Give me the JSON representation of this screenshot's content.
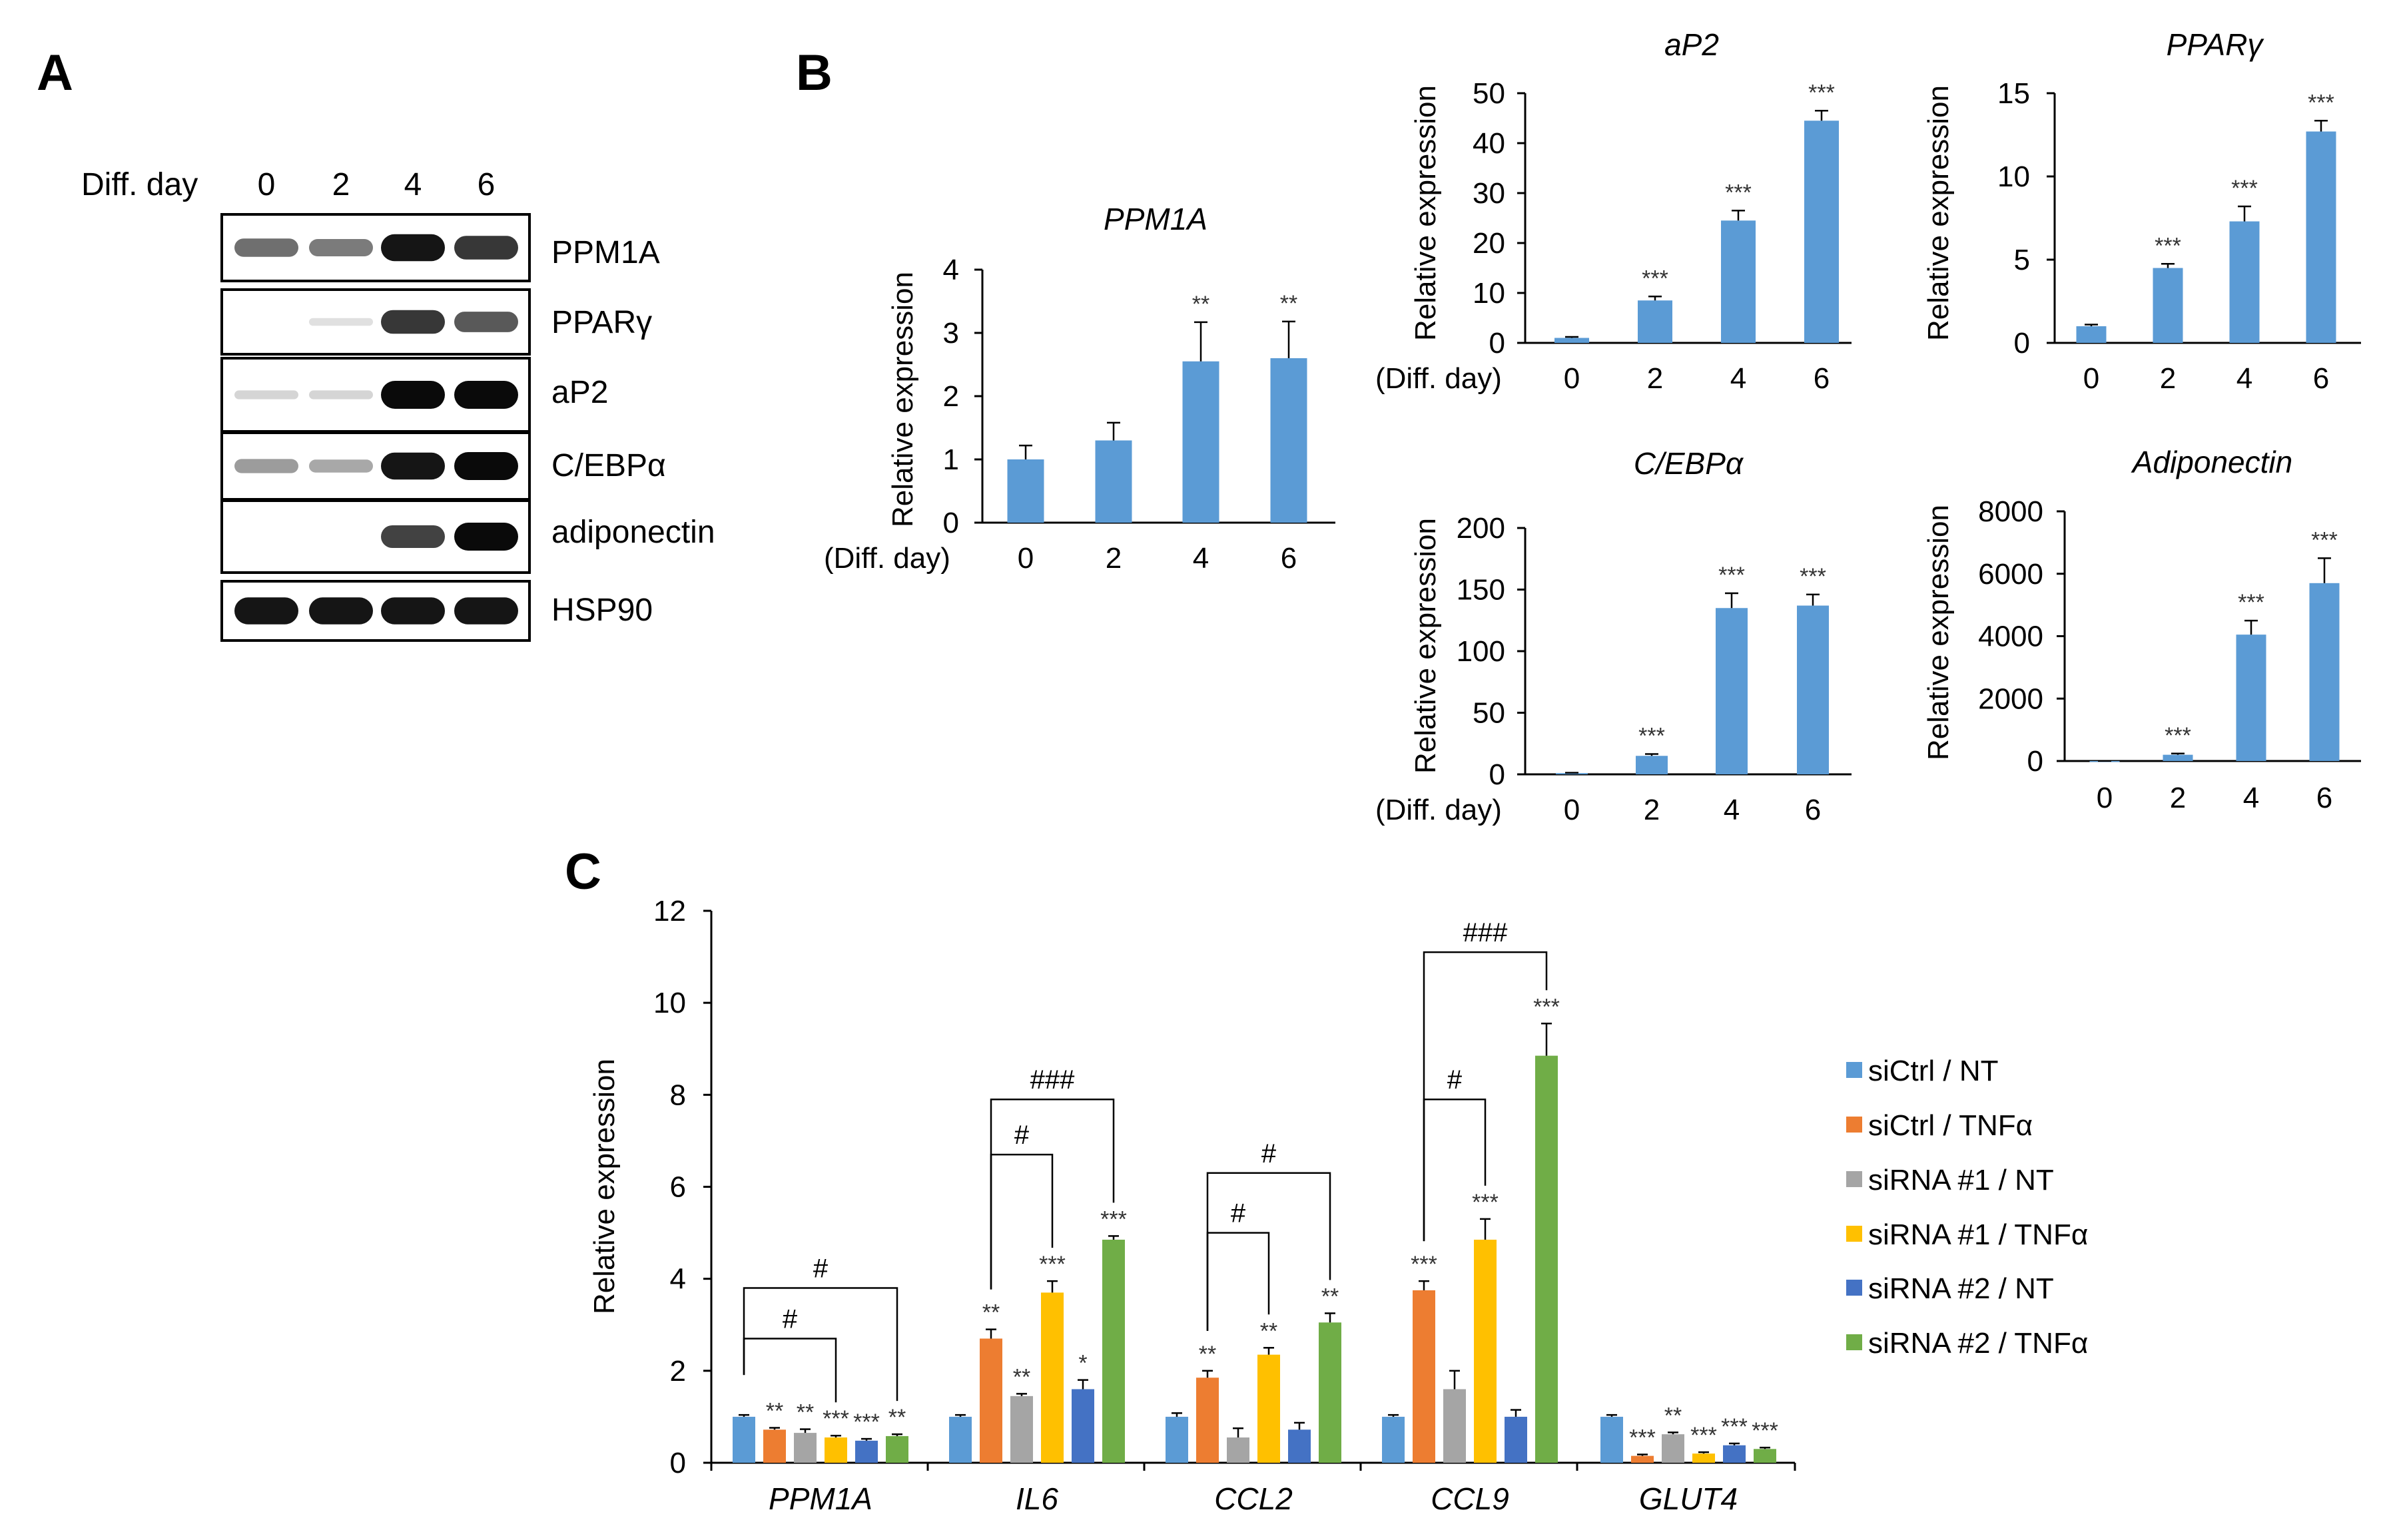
{
  "panels": {
    "A": "A",
    "B": "B",
    "C": "C"
  },
  "colors": {
    "bar_blue": "#5B9BD5",
    "siCtrl_NT": "#5B9BD5",
    "siCtrl_TNF": "#ED7D31",
    "siRNA1_NT": "#A5A5A5",
    "siRNA1_TNF": "#FFC000",
    "siRNA2_NT": "#4472C4",
    "siRNA2_TNF": "#70AD47"
  },
  "western_blot": {
    "day_label": "Diff. day",
    "days": [
      "0",
      "2",
      "4",
      "6"
    ],
    "proteins": [
      {
        "name": "PPM1A",
        "intensity": [
          0.55,
          0.5,
          0.95,
          0.8
        ]
      },
      {
        "name": "PPARγ",
        "intensity": [
          0.0,
          0.05,
          0.8,
          0.65
        ]
      },
      {
        "name": "aP2",
        "intensity": [
          0.1,
          0.1,
          1.0,
          1.0
        ]
      },
      {
        "name": "C/EBPα",
        "intensity": [
          0.35,
          0.3,
          0.95,
          1.0
        ]
      },
      {
        "name": "adiponectin",
        "intensity": [
          0.0,
          0.0,
          0.75,
          1.0
        ]
      },
      {
        "name": "HSP90",
        "intensity": [
          0.95,
          0.95,
          0.95,
          0.95
        ]
      }
    ]
  },
  "chart_data": [
    {
      "id": "b-ppm1a",
      "type": "bar",
      "title": "PPM1A",
      "ylabel": "Relative expression",
      "xlabel": "(Diff. day)",
      "categories": [
        "0",
        "2",
        "4",
        "6"
      ],
      "values": [
        1.0,
        1.3,
        2.55,
        2.6
      ],
      "errors": [
        0.22,
        0.28,
        0.62,
        0.58
      ],
      "significance": [
        "",
        "",
        "**",
        "**"
      ],
      "ylim": [
        0,
        4
      ],
      "yticks": [
        "0",
        "1",
        "2",
        "3",
        "4"
      ]
    },
    {
      "id": "b-ap2",
      "type": "bar",
      "title": "aP2",
      "ylabel": "Relative expression",
      "xlabel": "(Diff. day)",
      "categories": [
        "0",
        "2",
        "4",
        "6"
      ],
      "values": [
        1.0,
        8.5,
        24.5,
        44.5
      ],
      "errors": [
        0.2,
        0.8,
        2.0,
        2.0
      ],
      "significance": [
        "",
        "***",
        "***",
        "***"
      ],
      "ylim": [
        0,
        50
      ],
      "yticks": [
        "0",
        "10",
        "20",
        "30",
        "40",
        "50"
      ]
    },
    {
      "id": "b-ppar",
      "type": "bar",
      "title": "PPARγ",
      "ylabel": "Relative expression",
      "xlabel": "",
      "categories": [
        "0",
        "2",
        "4",
        "6"
      ],
      "values": [
        1.0,
        4.5,
        7.3,
        12.7
      ],
      "errors": [
        0.1,
        0.25,
        0.9,
        0.65
      ],
      "significance": [
        "",
        "***",
        "***",
        "***"
      ],
      "ylim": [
        0,
        15
      ],
      "yticks": [
        "0",
        "5",
        "10",
        "15"
      ]
    },
    {
      "id": "b-cebpa",
      "type": "bar",
      "title": "C/EBPα",
      "ylabel": "Relative expression",
      "xlabel": "(Diff. day)",
      "categories": [
        "0",
        "2",
        "4",
        "6"
      ],
      "values": [
        1.0,
        15.0,
        135.0,
        137.0
      ],
      "errors": [
        0.3,
        1.5,
        12.0,
        9.0
      ],
      "significance": [
        "",
        "***",
        "***",
        "***"
      ],
      "ylim": [
        0,
        200
      ],
      "yticks": [
        "0",
        "50",
        "100",
        "150",
        "200"
      ]
    },
    {
      "id": "b-adipo",
      "type": "bar",
      "title": "Adiponectin",
      "ylabel": "Relative expression",
      "xlabel": "",
      "categories": [
        "0",
        "2",
        "4",
        "6"
      ],
      "values": [
        1,
        200,
        4050,
        5700
      ],
      "errors": [
        1,
        40,
        450,
        800
      ],
      "significance": [
        "",
        "***",
        "***",
        "***"
      ],
      "ylim": [
        0,
        8000
      ],
      "yticks": [
        "0",
        "2000",
        "4000",
        "6000",
        "8000"
      ]
    },
    {
      "id": "c-grouped",
      "type": "bar",
      "ylabel": "Relative expression",
      "categories": [
        "PPM1A",
        "IL6",
        "CCL2",
        "CCL9",
        "GLUT4"
      ],
      "ylim": [
        0,
        12
      ],
      "yticks": [
        "0",
        "2",
        "4",
        "6",
        "8",
        "10",
        "12"
      ],
      "series": [
        {
          "name": "siCtrl / NT",
          "values": [
            1.0,
            1.0,
            1.0,
            1.0,
            1.0
          ],
          "errors": [
            0.04,
            0.04,
            0.08,
            0.04,
            0.04
          ],
          "significance": [
            "",
            "",
            "",
            "",
            ""
          ]
        },
        {
          "name": "siCtrl / TNFα",
          "values": [
            0.72,
            2.7,
            1.85,
            3.75,
            0.15
          ],
          "errors": [
            0.04,
            0.2,
            0.15,
            0.2,
            0.03
          ],
          "significance": [
            "**",
            "**",
            "**",
            "***",
            "***"
          ]
        },
        {
          "name": "siRNA #1 / NT",
          "values": [
            0.65,
            1.45,
            0.55,
            1.6,
            0.62
          ],
          "errors": [
            0.08,
            0.05,
            0.2,
            0.4,
            0.04
          ],
          "significance": [
            "**",
            "**",
            "",
            "",
            "**"
          ]
        },
        {
          "name": "siRNA #1 / TNFα",
          "values": [
            0.55,
            3.7,
            2.35,
            4.85,
            0.2
          ],
          "errors": [
            0.04,
            0.25,
            0.15,
            0.45,
            0.03
          ],
          "significance": [
            "***",
            "***",
            "**",
            "***",
            "***"
          ]
        },
        {
          "name": "siRNA #2 / NT",
          "values": [
            0.48,
            1.6,
            0.72,
            1.0,
            0.38
          ],
          "errors": [
            0.04,
            0.2,
            0.15,
            0.15,
            0.04
          ],
          "significance": [
            "***",
            "*",
            "",
            "",
            "***"
          ]
        },
        {
          "name": "siRNA #2 / TNFα",
          "values": [
            0.58,
            4.85,
            3.05,
            8.85,
            0.3
          ],
          "errors": [
            0.04,
            0.08,
            0.2,
            0.7,
            0.03
          ],
          "significance": [
            "**",
            "***",
            "**",
            "***",
            "***"
          ]
        }
      ],
      "comparisons": [
        {
          "group": 0,
          "from": 0,
          "to": 3,
          "label": "#",
          "y": 2.7
        },
        {
          "group": 0,
          "from": 0,
          "to": 5,
          "label": "#",
          "y": 3.8
        },
        {
          "group": 1,
          "from": 1,
          "to": 3,
          "label": "#",
          "y": 6.7
        },
        {
          "group": 1,
          "from": 1,
          "to": 5,
          "label": "###",
          "y": 7.9
        },
        {
          "group": 2,
          "from": 1,
          "to": 3,
          "label": "#",
          "y": 5.0
        },
        {
          "group": 2,
          "from": 1,
          "to": 5,
          "label": "#",
          "y": 6.3
        },
        {
          "group": 3,
          "from": 1,
          "to": 3,
          "label": "#",
          "y": 7.9
        },
        {
          "group": 3,
          "from": 1,
          "to": 5,
          "label": "###",
          "y": 11.1
        }
      ]
    }
  ]
}
